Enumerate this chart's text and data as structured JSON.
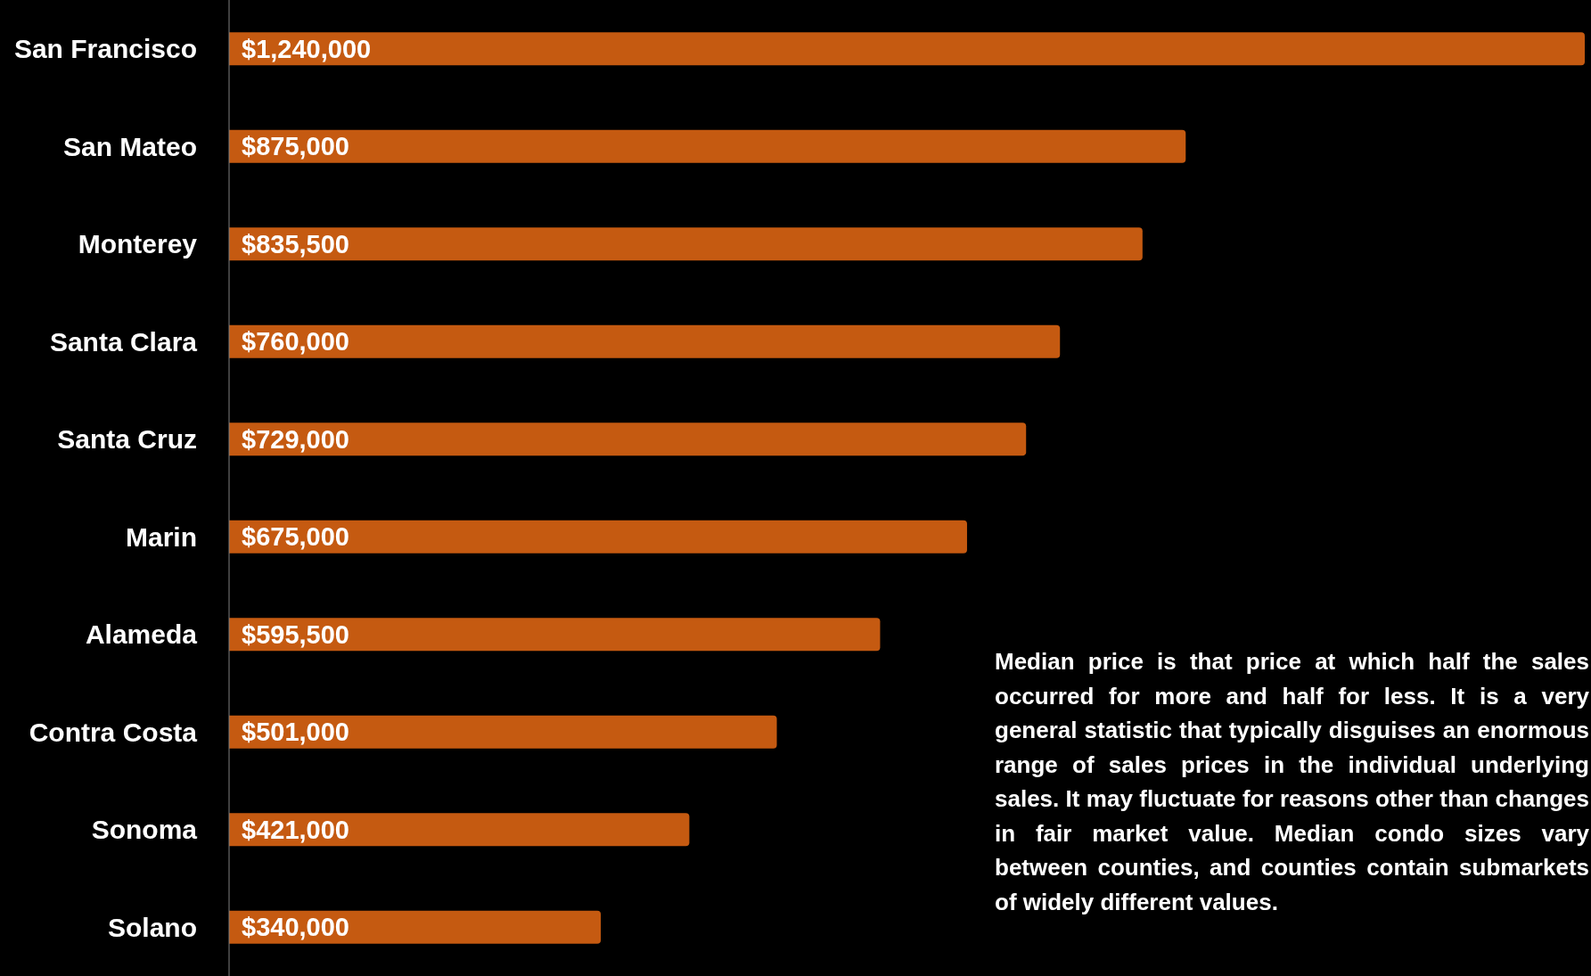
{
  "chart_data": {
    "type": "bar",
    "orientation": "horizontal",
    "categories": [
      "San Francisco",
      "San Mateo",
      "Monterey",
      "Santa Clara",
      "Santa Cruz",
      "Marin",
      "Alameda",
      "Contra Costa",
      "Sonoma",
      "Solano"
    ],
    "values": [
      1240000,
      875000,
      835500,
      760000,
      729000,
      675000,
      595500,
      501000,
      421000,
      340000
    ],
    "value_labels": [
      "$1,240,000",
      "$875,000",
      "$835,500",
      "$760,000",
      "$729,000",
      "$675,000",
      "$595,500",
      "$501,000",
      "$421,000",
      "$340,000"
    ],
    "color": "#c55a11",
    "annotations": [
      "Median price is that price at which half the sales occurred for more and half for less. It is a very general statistic that typically disguises an enormous range of sales prices in the individual underlying sales. It may fluctuate for reasons other than changes in fair market value. Median condo sizes vary between counties, and counties contain submarkets of widely different values."
    ]
  }
}
